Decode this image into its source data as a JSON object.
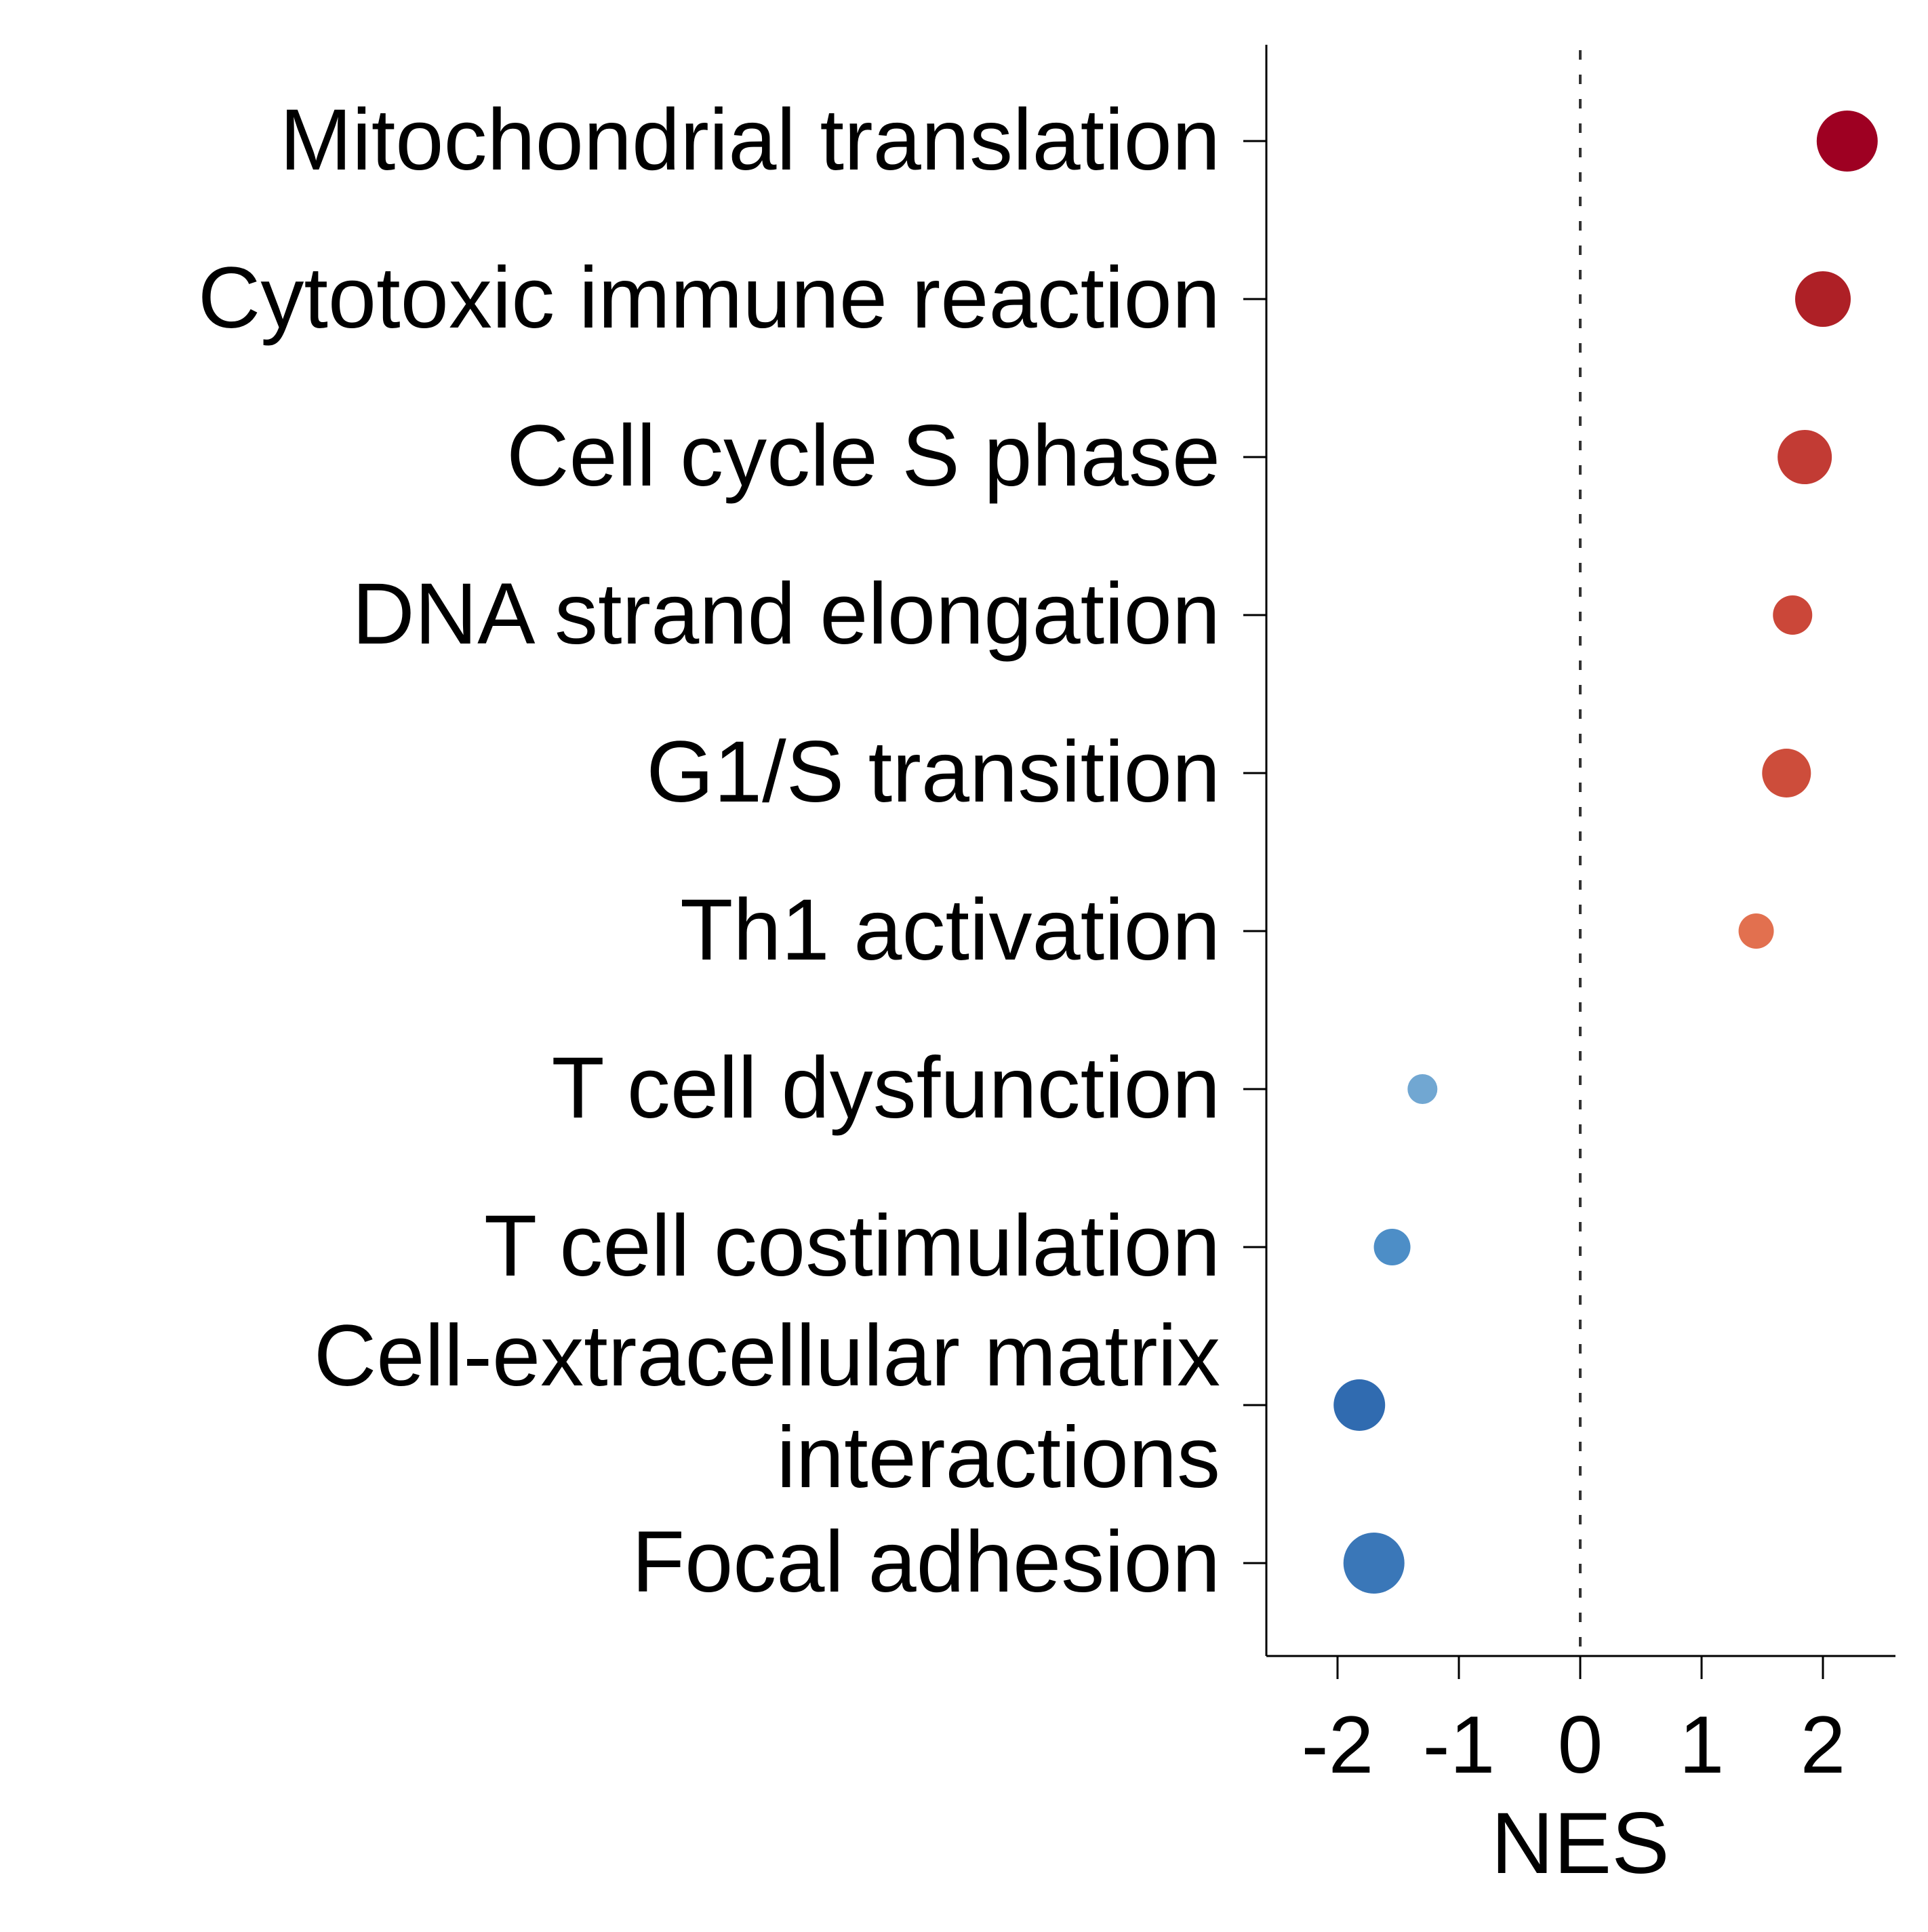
{
  "chart_data": {
    "type": "scatter",
    "title": "",
    "xlabel": "NES",
    "ylabel": "",
    "xlim": [
      -2.6,
      2.6
    ],
    "xticks": [
      -2,
      -1,
      0,
      1,
      2
    ],
    "xtick_labels": [
      "-2",
      "-1",
      "0",
      "1",
      "2"
    ],
    "reference_line": {
      "x": 0,
      "style": "dashed"
    },
    "grid": false,
    "legend": "none",
    "categories": [
      [
        "Mitochondrial translation"
      ],
      [
        "Cytotoxic immune reaction"
      ],
      [
        "Cell cycle S phase"
      ],
      [
        "DNA strand elongation"
      ],
      [
        "G1/S transition"
      ],
      [
        "Th1 activation"
      ],
      [
        "T cell dysfunction"
      ],
      [
        "T cell costimulation"
      ],
      [
        "Cell-extracellular matrix",
        "interactions"
      ],
      [
        "Focal adhesion"
      ]
    ],
    "points": [
      {
        "nes": 2.2,
        "color": "#9e0022",
        "size": 1.0
      },
      {
        "nes": 2.0,
        "color": "#ae2026",
        "size": 0.9
      },
      {
        "nes": 1.85,
        "color": "#c23b34",
        "size": 0.88
      },
      {
        "nes": 1.75,
        "color": "#cb4739",
        "size": 0.65
      },
      {
        "nes": 1.7,
        "color": "#cd4d3b",
        "size": 0.8
      },
      {
        "nes": 1.45,
        "color": "#e2704f",
        "size": 0.58
      },
      {
        "nes": -1.3,
        "color": "#71a7d2",
        "size": 0.48
      },
      {
        "nes": -1.55,
        "color": "#4d8ec7",
        "size": 0.6
      },
      {
        "nes": -1.82,
        "color": "#306bb0",
        "size": 0.85
      },
      {
        "nes": -1.7,
        "color": "#3a77b8",
        "size": 1.0
      }
    ]
  }
}
